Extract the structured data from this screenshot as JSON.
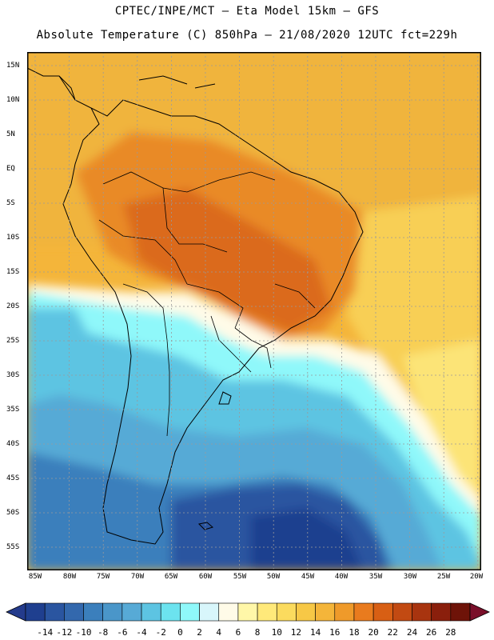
{
  "title_line1": "CPTEC/INPE/MCT –  Eta Model 15km – GFS",
  "title_line2": "Absolute Temperature (C) 850hPa – 21/08/2020 12UTC fct=229h",
  "map": {
    "lat_labels": [
      "15N",
      "10N",
      "5N",
      "EQ",
      "5S",
      "10S",
      "15S",
      "20S",
      "25S",
      "30S",
      "35S",
      "40S",
      "45S",
      "50S",
      "55S"
    ],
    "lon_labels": [
      "85W",
      "80W",
      "75W",
      "70W",
      "65W",
      "60W",
      "55W",
      "50W",
      "45W",
      "40W",
      "35W",
      "30W",
      "25W",
      "20W"
    ],
    "grid": "dotted",
    "region": "South America"
  },
  "colorbar": {
    "labels": [
      "-14",
      "-12",
      "-10",
      "-8",
      "-6",
      "-4",
      "-2",
      "0",
      "2",
      "4",
      "6",
      "8",
      "10",
      "12",
      "14",
      "16",
      "18",
      "20",
      "22",
      "24",
      "26",
      "28"
    ],
    "colors": [
      "#1f3f8f",
      "#2a55a0",
      "#3368ad",
      "#3b7fbc",
      "#4a96c9",
      "#57aad6",
      "#5dc4e2",
      "#6ce3ef",
      "#8ff8fa",
      "#d8f6fb",
      "#fffbe8",
      "#fff7a8",
      "#ffe97a",
      "#fbdb5e",
      "#f7c846",
      "#f4b53a",
      "#ef9a2a",
      "#e97b1e",
      "#d85f14",
      "#c24a12",
      "#a8340f",
      "#8a1f0c",
      "#6e1308"
    ],
    "under_color": "#243b8c",
    "over_color": "#7a0f2a"
  }
}
